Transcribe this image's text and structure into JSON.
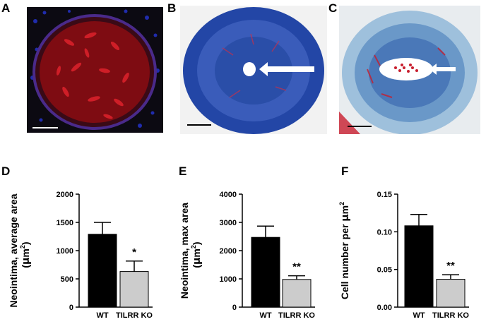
{
  "panels": {
    "A": "A",
    "B": "B",
    "C": "C",
    "D": "D",
    "E": "E",
    "F": "F"
  },
  "images": {
    "A": {
      "stain": "immunofluorescence",
      "background": "#0c0a12",
      "tissue_color": "#b4121a",
      "nuclei_color": "#2432c8",
      "scalebar_color": "#ffffff"
    },
    "B": {
      "stain": "trichrome",
      "tissue_color": "#2346a6",
      "accent_color": "#c8304a",
      "arrow_color": "#ffffff",
      "scalebar_color": "#000000"
    },
    "C": {
      "stain": "trichrome",
      "tissue_color": "#6a98c8",
      "accent_color": "#c81e2e",
      "arrow_color": "#ffffff",
      "scalebar_color": "#000000"
    }
  },
  "chart_data": [
    {
      "type": "bar",
      "panel": "D",
      "categories": [
        "WT",
        "TILRR KO"
      ],
      "values": [
        1290,
        630
      ],
      "errors": [
        210,
        185
      ],
      "bar_colors": [
        "#000000",
        "#cccccc"
      ],
      "significance": [
        "",
        "*"
      ],
      "ylabel_line1": "Neointima, average area",
      "ylabel_line2_pre": "(",
      "ylabel_mu": "μ",
      "ylabel_unit": "m",
      "ylabel_sup": "2",
      "ylabel_line2_post": ")",
      "ylim": [
        0,
        2000
      ],
      "yticks": [
        "0",
        "500",
        "1000",
        "1500",
        "2000"
      ]
    },
    {
      "type": "bar",
      "panel": "E",
      "categories": [
        "WT",
        "TILRR KO"
      ],
      "values": [
        2470,
        980
      ],
      "errors": [
        400,
        130
      ],
      "bar_colors": [
        "#000000",
        "#cccccc"
      ],
      "significance": [
        "",
        "**"
      ],
      "ylabel_line1": "Neointima, max area",
      "ylabel_line2_pre": "(",
      "ylabel_mu": "μ",
      "ylabel_unit": "m",
      "ylabel_sup": "2",
      "ylabel_line2_post": ")",
      "ylim": [
        0,
        4000
      ],
      "yticks": [
        "0",
        "1000",
        "2000",
        "3000",
        "4000"
      ]
    },
    {
      "type": "bar",
      "panel": "F",
      "categories": [
        "WT",
        "TILRR KO"
      ],
      "values": [
        0.108,
        0.037
      ],
      "errors": [
        0.015,
        0.006
      ],
      "bar_colors": [
        "#000000",
        "#cccccc"
      ],
      "significance": [
        "",
        "**"
      ],
      "ylabel_line1": "Cell number per ",
      "ylabel_mu": "μ",
      "ylabel_unit": "m",
      "ylabel_sup": "2",
      "ylim": [
        0,
        0.15
      ],
      "yticks": [
        "0.00",
        "0.05",
        "0.10",
        "0.15"
      ]
    }
  ]
}
